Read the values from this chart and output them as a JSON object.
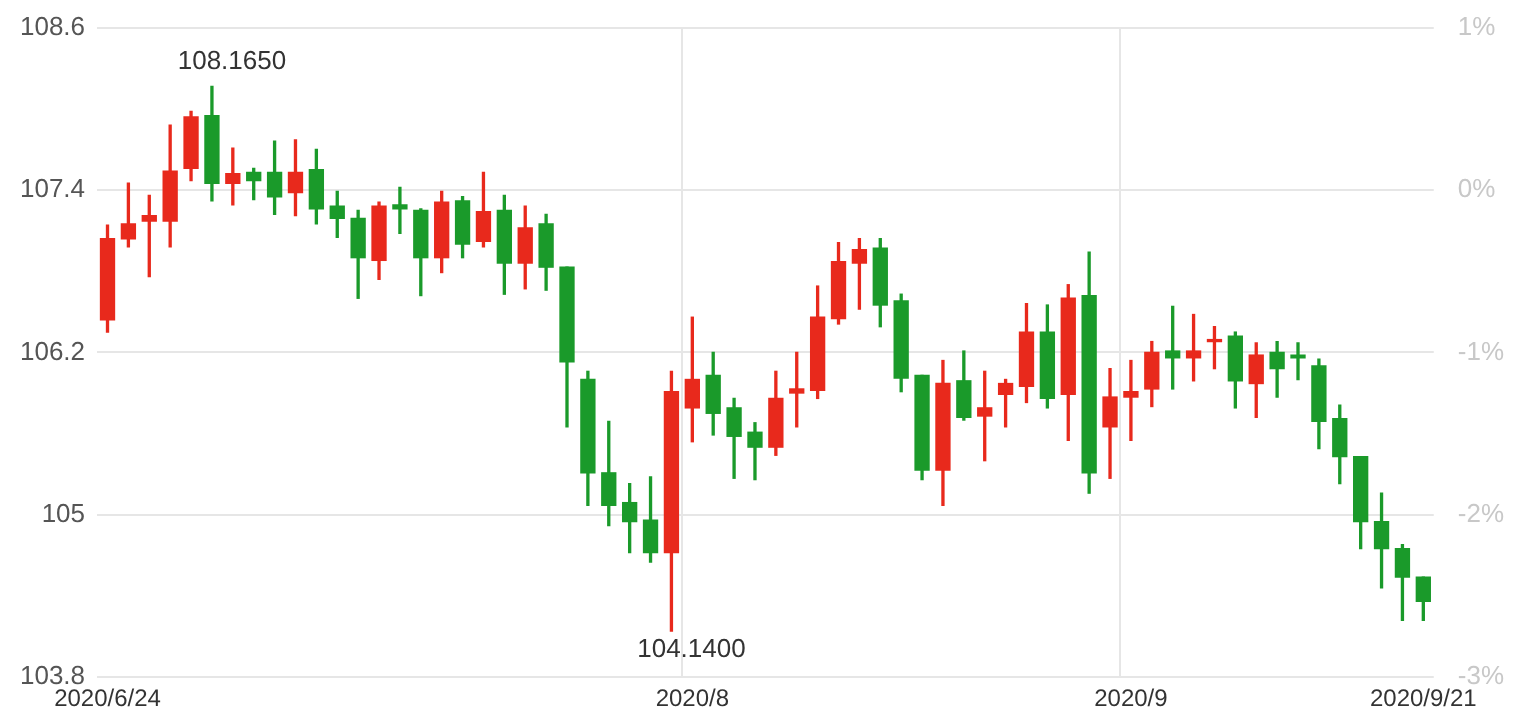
{
  "chart_data": {
    "type": "candlestick",
    "categories": [
      "2020/6/24",
      null,
      null,
      null,
      null,
      null,
      null,
      null,
      null,
      null,
      null,
      null,
      null,
      null,
      null,
      null,
      null,
      null,
      null,
      null,
      null,
      null,
      null,
      null,
      null,
      null,
      null,
      null,
      "2020/8",
      null,
      null,
      null,
      null,
      null,
      null,
      null,
      null,
      null,
      null,
      null,
      null,
      null,
      null,
      null,
      null,
      null,
      null,
      null,
      null,
      "2020/9",
      null,
      null,
      null,
      null,
      null,
      null,
      null,
      null,
      null,
      null,
      null,
      null,
      null,
      "2020/9/21"
    ],
    "ohlc": [
      [
        106.44,
        107.14,
        106.35,
        107.04
      ],
      [
        107.04,
        107.45,
        106.98,
        107.15
      ],
      [
        107.17,
        107.36,
        106.76,
        107.21
      ],
      [
        107.17,
        107.88,
        106.98,
        107.54
      ],
      [
        107.56,
        107.98,
        107.47,
        107.94
      ],
      [
        107.95,
        108.165,
        107.32,
        107.45
      ],
      [
        107.45,
        107.71,
        107.29,
        107.52
      ],
      [
        107.53,
        107.56,
        107.33,
        107.47
      ],
      [
        107.53,
        107.76,
        107.22,
        107.35
      ],
      [
        107.38,
        107.77,
        107.21,
        107.53
      ],
      [
        107.55,
        107.7,
        107.15,
        107.26
      ],
      [
        107.28,
        107.39,
        107.05,
        107.19
      ],
      [
        107.19,
        107.25,
        106.6,
        106.9
      ],
      [
        106.88,
        107.31,
        106.74,
        107.28
      ],
      [
        107.29,
        107.42,
        107.08,
        107.26
      ],
      [
        107.25,
        107.26,
        106.62,
        106.9
      ],
      [
        106.9,
        107.39,
        106.79,
        107.31
      ],
      [
        107.32,
        107.35,
        106.9,
        107.0
      ],
      [
        107.02,
        107.53,
        106.98,
        107.24
      ],
      [
        107.25,
        107.36,
        106.63,
        106.86
      ],
      [
        106.86,
        107.28,
        106.67,
        107.12
      ],
      [
        107.15,
        107.22,
        106.66,
        106.83
      ],
      [
        106.83,
        106.83,
        105.65,
        106.13
      ],
      [
        106.0,
        106.06,
        105.07,
        105.31
      ],
      [
        105.31,
        105.69,
        104.92,
        105.07
      ],
      [
        105.09,
        105.23,
        104.72,
        104.95
      ],
      [
        104.96,
        105.28,
        104.65,
        104.72
      ],
      [
        104.72,
        106.06,
        104.14,
        105.91
      ],
      [
        105.79,
        106.46,
        105.54,
        106.0
      ],
      [
        106.03,
        106.2,
        105.59,
        105.75
      ],
      [
        105.79,
        105.86,
        105.27,
        105.58
      ],
      [
        105.61,
        105.68,
        105.26,
        105.5
      ],
      [
        105.5,
        106.06,
        105.44,
        105.86
      ],
      [
        105.9,
        106.2,
        105.65,
        105.93
      ],
      [
        105.92,
        106.69,
        105.86,
        106.46
      ],
      [
        106.45,
        107.01,
        106.41,
        106.87
      ],
      [
        106.86,
        107.04,
        106.52,
        106.96
      ],
      [
        106.97,
        107.04,
        106.39,
        106.55
      ],
      [
        106.58,
        106.63,
        105.91,
        106.01
      ],
      [
        106.03,
        106.03,
        105.26,
        105.33
      ],
      [
        105.33,
        106.14,
        105.07,
        105.97
      ],
      [
        105.99,
        106.21,
        105.7,
        105.72
      ],
      [
        105.73,
        106.06,
        105.4,
        105.79
      ],
      [
        105.89,
        106.0,
        105.65,
        105.97
      ],
      [
        105.95,
        106.56,
        105.83,
        106.35
      ],
      [
        106.35,
        106.55,
        105.79,
        105.86
      ],
      [
        105.89,
        106.7,
        105.55,
        106.6
      ],
      [
        106.62,
        106.94,
        105.16,
        105.31
      ],
      [
        105.65,
        106.08,
        105.27,
        105.87
      ],
      [
        105.87,
        106.14,
        105.55,
        105.91
      ],
      [
        105.93,
        106.28,
        105.8,
        106.2
      ],
      [
        106.21,
        106.54,
        105.93,
        106.16
      ],
      [
        106.16,
        106.48,
        105.99,
        106.21
      ],
      [
        106.28,
        106.39,
        106.08,
        106.29
      ],
      [
        106.32,
        106.35,
        105.79,
        105.99
      ],
      [
        105.97,
        106.27,
        105.72,
        106.18
      ],
      [
        106.2,
        106.28,
        105.87,
        106.08
      ],
      [
        106.18,
        106.27,
        106.0,
        106.16
      ],
      [
        106.1,
        106.15,
        105.49,
        105.69
      ],
      [
        105.71,
        105.81,
        105.23,
        105.43
      ],
      [
        105.43,
        105.43,
        104.75,
        104.95
      ],
      [
        104.95,
        105.16,
        104.46,
        104.75
      ],
      [
        104.75,
        104.78,
        104.22,
        104.54
      ],
      [
        104.54,
        104.54,
        104.22,
        104.36
      ]
    ],
    "colors": [
      "#e8291c",
      "#e8291c",
      "#e8291c",
      "#e8291c",
      "#e8291c",
      "#1a9a2a",
      "#e8291c",
      "#1a9a2a",
      "#1a9a2a",
      "#e8291c",
      "#1a9a2a",
      "#1a9a2a",
      "#1a9a2a",
      "#e8291c",
      "#1a9a2a",
      "#1a9a2a",
      "#e8291c",
      "#1a9a2a",
      "#e8291c",
      "#1a9a2a",
      "#e8291c",
      "#1a9a2a",
      "#1a9a2a",
      "#1a9a2a",
      "#1a9a2a",
      "#1a9a2a",
      "#1a9a2a",
      "#e8291c",
      "#e8291c",
      "#1a9a2a",
      "#1a9a2a",
      "#1a9a2a",
      "#e8291c",
      "#e8291c",
      "#e8291c",
      "#e8291c",
      "#e8291c",
      "#1a9a2a",
      "#1a9a2a",
      "#1a9a2a",
      "#e8291c",
      "#1a9a2a",
      "#e8291c",
      "#e8291c",
      "#e8291c",
      "#1a9a2a",
      "#e8291c",
      "#1a9a2a",
      "#e8291c",
      "#e8291c",
      "#e8291c",
      "#1a9a2a",
      "#e8291c",
      "#e8291c",
      "#1a9a2a",
      "#e8291c",
      "#1a9a2a",
      "#1a9a2a",
      "#1a9a2a",
      "#1a9a2a",
      "#1a9a2a",
      "#1a9a2a",
      "#1a9a2a",
      "#1a9a2a"
    ],
    "ylim": [
      103.8,
      108.6
    ],
    "yticks": [
      103.8,
      105,
      106.2,
      107.4,
      108.6
    ],
    "y2lim": [
      -3,
      1
    ],
    "y2ticks": [
      {
        "value": 1,
        "label": "1%"
      },
      {
        "value": 0,
        "label": "0%"
      },
      {
        "value": -1,
        "label": "-1%"
      },
      {
        "value": -2,
        "label": "-2%"
      },
      {
        "value": -3,
        "label": "-3%"
      }
    ],
    "grid": true,
    "annotations": [
      "108.1650",
      "104.1400"
    ]
  }
}
